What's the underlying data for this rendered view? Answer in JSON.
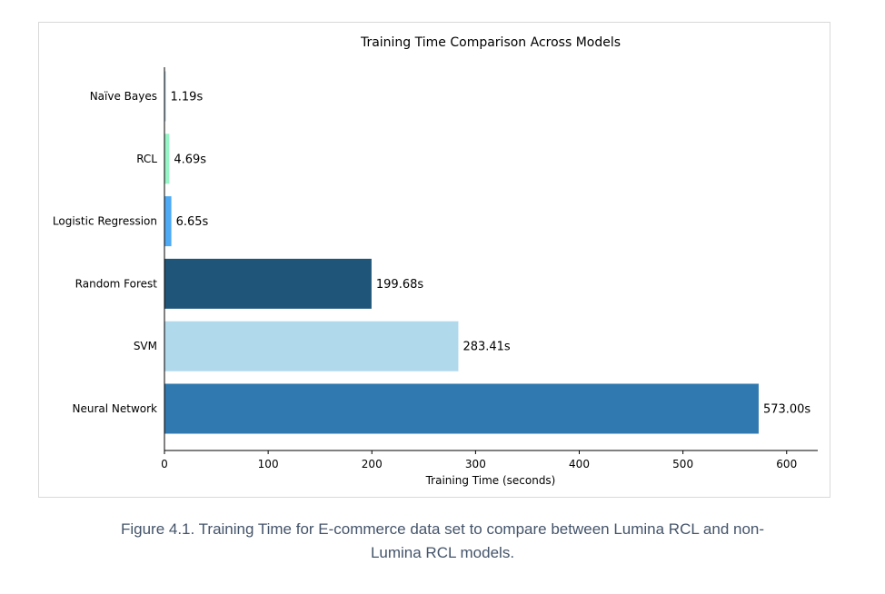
{
  "chart_data": {
    "type": "bar",
    "orientation": "horizontal",
    "title": "Training Time Comparison Across Models",
    "xlabel": "Training Time (seconds)",
    "ylabel": "",
    "categories": [
      "Naïve Bayes",
      "RCL",
      "Logistic Regression",
      "Random Forest",
      "SVM",
      "Neural Network"
    ],
    "values": [
      1.19,
      4.69,
      6.65,
      199.68,
      283.41,
      573.0
    ],
    "value_labels": [
      "1.19s",
      "4.69s",
      "6.65s",
      "199.68s",
      "283.41s",
      "573.00s"
    ],
    "colors": [
      "#a6cee3",
      "#98f5c8",
      "#4eaaf5",
      "#1f5579",
      "#b0d9ec",
      "#3079b0"
    ],
    "xlim": [
      0,
      630
    ],
    "xticks": [
      0,
      100,
      200,
      300,
      400,
      500,
      600
    ],
    "grid": false
  },
  "caption": {
    "line1": "Figure 4.1. Training Time for E-commerce data set to compare between Lumina RCL and non-",
    "line2": "Lumina RCL models."
  }
}
